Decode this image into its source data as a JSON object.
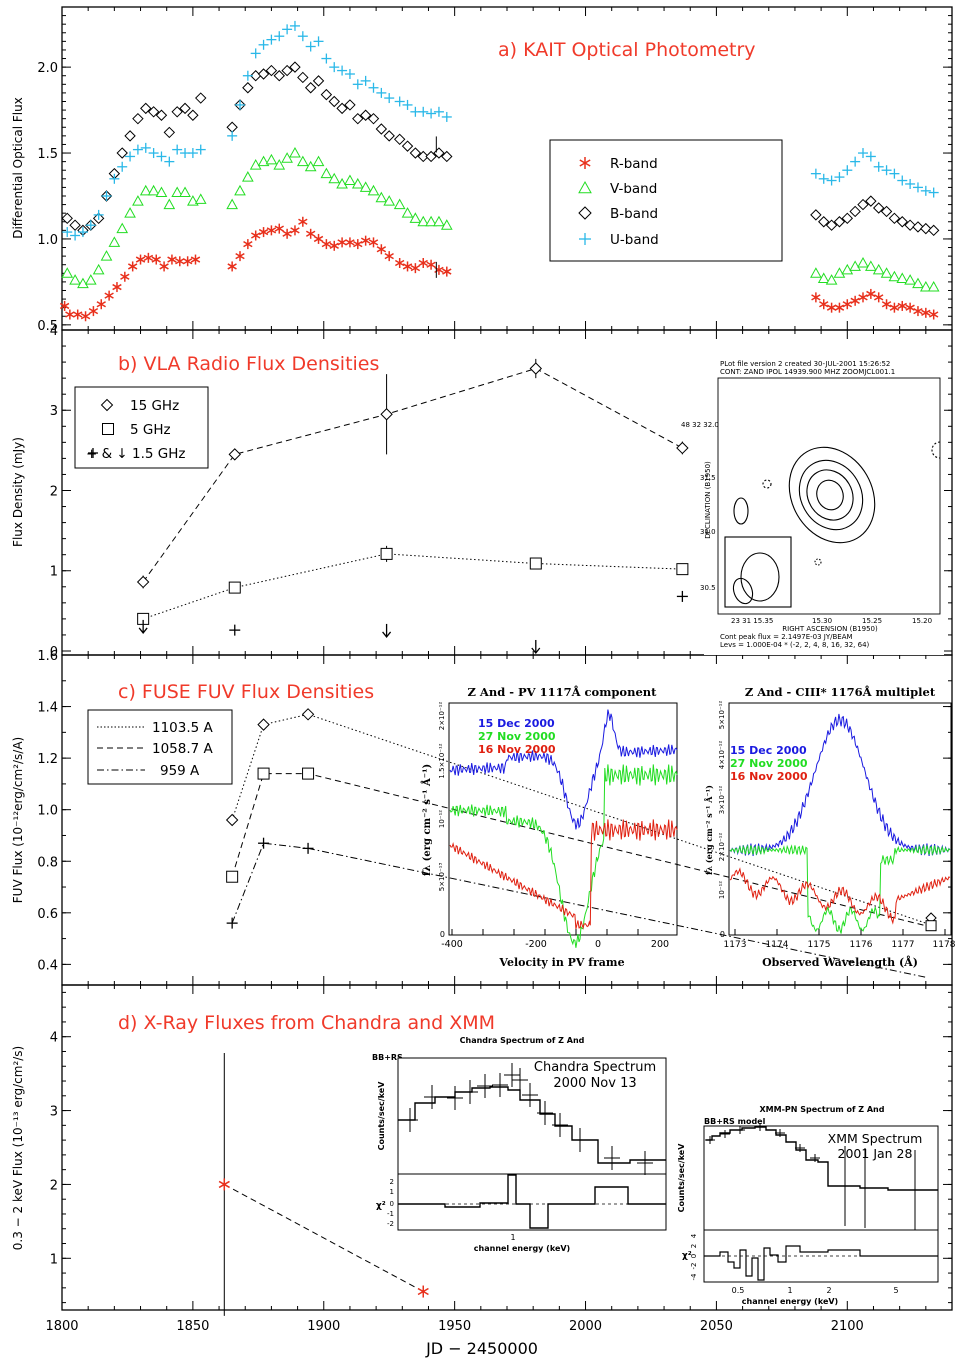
{
  "figure": {
    "xlabel": "JD − 2450000",
    "xticks": [
      1800,
      1850,
      1900,
      1950,
      2000,
      2050,
      2100
    ],
    "xlim": [
      1800,
      2140
    ]
  },
  "chart_data": [
    {
      "type": "scatter",
      "panel": "a",
      "title": "a) KAIT Optical Photometry",
      "ylabel": "Differential Optical Flux",
      "ylim": [
        0.47,
        2.35
      ],
      "yticks": [
        "0.5",
        "1.0",
        "1.5",
        "2.0"
      ],
      "legend_position": "right-center",
      "series": [
        {
          "name": "R-band",
          "marker": "asterisk",
          "color": "#e8301c",
          "x": [
            1801,
            1803,
            1806,
            1809,
            1812,
            1815,
            1818,
            1821,
            1824,
            1827,
            1830,
            1833,
            1836,
            1839,
            1842,
            1845,
            1848,
            1851,
            1865,
            1868,
            1871,
            1874,
            1877,
            1880,
            1883,
            1886,
            1889,
            1892,
            1895,
            1898,
            1901,
            1904,
            1907,
            1910,
            1913,
            1916,
            1919,
            1922,
            1925,
            1929,
            1932,
            1935,
            1938,
            1941,
            1944,
            1947,
            2088,
            2091,
            2094,
            2097,
            2100,
            2103,
            2106,
            2109,
            2112,
            2115,
            2118,
            2121,
            2124,
            2127,
            2130,
            2133
          ],
          "y": [
            0.61,
            0.56,
            0.56,
            0.55,
            0.58,
            0.62,
            0.67,
            0.72,
            0.78,
            0.84,
            0.88,
            0.89,
            0.88,
            0.84,
            0.88,
            0.87,
            0.87,
            0.88,
            0.84,
            0.9,
            0.97,
            1.02,
            1.04,
            1.05,
            1.06,
            1.03,
            1.05,
            1.1,
            1.03,
            1.0,
            0.97,
            0.96,
            0.98,
            0.98,
            0.97,
            0.99,
            0.98,
            0.94,
            0.9,
            0.86,
            0.84,
            0.83,
            0.86,
            0.85,
            0.82,
            0.81,
            0.66,
            0.62,
            0.6,
            0.6,
            0.62,
            0.64,
            0.66,
            0.68,
            0.66,
            0.62,
            0.6,
            0.61,
            0.6,
            0.58,
            0.57,
            0.56
          ]
        },
        {
          "name": "V-band",
          "marker": "triangle",
          "color": "#22dd22",
          "x": [
            1802,
            1805,
            1808,
            1811,
            1814,
            1817,
            1820,
            1823,
            1826,
            1829,
            1832,
            1835,
            1838,
            1841,
            1844,
            1847,
            1850,
            1853,
            1865,
            1868,
            1871,
            1874,
            1877,
            1880,
            1883,
            1886,
            1889,
            1892,
            1895,
            1898,
            1901,
            1904,
            1907,
            1910,
            1913,
            1916,
            1919,
            1922,
            1925,
            1929,
            1932,
            1935,
            1938,
            1941,
            1944,
            1947,
            2088,
            2091,
            2094,
            2097,
            2100,
            2103,
            2106,
            2109,
            2112,
            2115,
            2118,
            2121,
            2124,
            2127,
            2130,
            2133
          ],
          "y": [
            0.8,
            0.76,
            0.74,
            0.76,
            0.82,
            0.9,
            0.98,
            1.06,
            1.15,
            1.22,
            1.28,
            1.28,
            1.27,
            1.2,
            1.27,
            1.27,
            1.22,
            1.23,
            1.2,
            1.28,
            1.36,
            1.43,
            1.45,
            1.46,
            1.43,
            1.47,
            1.5,
            1.45,
            1.42,
            1.45,
            1.38,
            1.35,
            1.32,
            1.34,
            1.32,
            1.3,
            1.28,
            1.24,
            1.22,
            1.2,
            1.15,
            1.12,
            1.1,
            1.1,
            1.1,
            1.08,
            0.8,
            0.77,
            0.76,
            0.8,
            0.82,
            0.84,
            0.86,
            0.84,
            0.82,
            0.8,
            0.78,
            0.77,
            0.76,
            0.74,
            0.72,
            0.72
          ]
        },
        {
          "name": "B-band",
          "marker": "diamond",
          "color": "#000000",
          "x": [
            1802,
            1805,
            1808,
            1811,
            1814,
            1817,
            1820,
            1823,
            1826,
            1829,
            1832,
            1835,
            1838,
            1841,
            1844,
            1847,
            1850,
            1853,
            1865,
            1868,
            1871,
            1874,
            1877,
            1880,
            1883,
            1886,
            1889,
            1892,
            1895,
            1898,
            1901,
            1904,
            1907,
            1910,
            1913,
            1916,
            1919,
            1922,
            1925,
            1929,
            1932,
            1935,
            1938,
            1941,
            1944,
            1947,
            2088,
            2091,
            2094,
            2097,
            2100,
            2103,
            2106,
            2109,
            2112,
            2115,
            2118,
            2121,
            2124,
            2127,
            2130,
            2133
          ],
          "y": [
            1.12,
            1.08,
            1.05,
            1.08,
            1.12,
            1.25,
            1.38,
            1.5,
            1.6,
            1.7,
            1.76,
            1.74,
            1.72,
            1.62,
            1.74,
            1.76,
            1.72,
            1.82,
            1.65,
            1.78,
            1.88,
            1.95,
            1.96,
            1.98,
            1.95,
            1.98,
            2.0,
            1.94,
            1.88,
            1.92,
            1.84,
            1.8,
            1.76,
            1.78,
            1.7,
            1.72,
            1.7,
            1.64,
            1.6,
            1.58,
            1.54,
            1.5,
            1.48,
            1.48,
            1.5,
            1.48,
            1.14,
            1.1,
            1.08,
            1.1,
            1.12,
            1.16,
            1.2,
            1.22,
            1.18,
            1.16,
            1.12,
            1.1,
            1.08,
            1.07,
            1.06,
            1.05
          ]
        },
        {
          "name": "U-band",
          "marker": "plus",
          "color": "#2ab8e8",
          "x": [
            1802,
            1805,
            1808,
            1811,
            1814,
            1817,
            1820,
            1823,
            1826,
            1829,
            1832,
            1835,
            1838,
            1841,
            1844,
            1847,
            1850,
            1853,
            1865,
            1868,
            1871,
            1874,
            1877,
            1880,
            1883,
            1886,
            1889,
            1892,
            1895,
            1898,
            1901,
            1904,
            1907,
            1910,
            1913,
            1916,
            1919,
            1922,
            1925,
            1929,
            1932,
            1935,
            1938,
            1941,
            1944,
            1947,
            2088,
            2091,
            2094,
            2097,
            2100,
            2103,
            2106,
            2109,
            2112,
            2115,
            2118,
            2121,
            2124,
            2127,
            2130,
            2133
          ],
          "y": [
            1.04,
            1.02,
            1.04,
            1.08,
            1.14,
            1.25,
            1.35,
            1.42,
            1.48,
            1.52,
            1.53,
            1.5,
            1.48,
            1.45,
            1.52,
            1.5,
            1.5,
            1.52,
            1.6,
            1.78,
            1.95,
            2.08,
            2.13,
            2.16,
            2.18,
            2.22,
            2.24,
            2.18,
            2.12,
            2.15,
            2.05,
            2.0,
            1.98,
            1.96,
            1.9,
            1.92,
            1.88,
            1.85,
            1.82,
            1.8,
            1.78,
            1.74,
            1.74,
            1.73,
            1.74,
            1.71,
            1.38,
            1.35,
            1.34,
            1.36,
            1.4,
            1.45,
            1.5,
            1.48,
            1.42,
            1.4,
            1.38,
            1.34,
            1.32,
            1.3,
            1.28,
            1.27
          ]
        }
      ]
    },
    {
      "type": "line",
      "panel": "b",
      "title": "b) VLA Radio Flux Densities",
      "ylabel": "Flux Density (mJy)",
      "ylim": [
        -0.05,
        4.0
      ],
      "yticks": [
        "0",
        "1",
        "2",
        "3",
        "4"
      ],
      "series": [
        {
          "name": "15 GHz",
          "marker": "diamond",
          "line": "dashed",
          "x": [
            1831,
            1866,
            1924,
            1981,
            2037
          ],
          "y": [
            0.86,
            2.45,
            2.95,
            3.52,
            2.53
          ],
          "err": [
            0.08,
            0.06,
            0.5,
            0.12,
            0.08
          ]
        },
        {
          "name": "5 GHz",
          "marker": "square",
          "line": "dotted",
          "x": [
            1831,
            1866,
            1924,
            1981,
            2037
          ],
          "y": [
            0.4,
            0.79,
            1.21,
            1.09,
            1.02
          ],
          "err": [
            0.05,
            0.05,
            0.1,
            0.06,
            0.05
          ]
        },
        {
          "name": "+ & ↓ 1.5 GHz",
          "marker": "plus-or-arrow",
          "x": [
            1831,
            1866,
            1924,
            1981,
            2037
          ],
          "y": [
            0.3,
            0.26,
            0.25,
            0.05,
            0.68
          ],
          "upper_limit": [
            true,
            false,
            true,
            true,
            false
          ]
        }
      ],
      "inset": {
        "header1": "PLot file version 2  created 30-JUL-2001 15:26:52",
        "header2": "CONT: ZAND  IPOL  14939.900 MHZ  ZOOMJCL001.1",
        "ylabel": "DECLINATION (B1950)",
        "xlabel": "RIGHT ASCENSION (B1950)",
        "yticks": [
          "48 32 32.0",
          "31.5",
          "31.0",
          "30.5"
        ],
        "xticks": [
          "23 31 15.35",
          "15.30",
          "15.25",
          "15.20"
        ],
        "footer1": "Cont peak flux =  2.1497E-03 JY/BEAM",
        "footer2": "Levs = 1.000E-04 * (-2, 2, 4, 8, 16, 32, 64)"
      }
    },
    {
      "type": "line",
      "panel": "c",
      "title": "c) FUSE FUV Flux Densities",
      "ylabel": "FUV Flux (10⁻¹²erg/cm²/s/A)",
      "ylim": [
        0.32,
        1.6
      ],
      "yticks": [
        "0.4",
        "0.6",
        "0.8",
        "1.0",
        "1.2",
        "1.4",
        "1.6"
      ],
      "series": [
        {
          "name": "1103.5 A",
          "marker": "diamond",
          "line": "dotted",
          "x": [
            1865,
            1877,
            1894,
            2130
          ],
          "y": [
            0.96,
            1.33,
            1.37,
            0.56
          ]
        },
        {
          "name": "1058.7 A",
          "marker": "square",
          "line": "dashed",
          "x": [
            1865,
            1877,
            1894,
            2130
          ],
          "y": [
            0.74,
            1.14,
            1.14,
            0.55
          ]
        },
        {
          "name": "959 A",
          "marker": "plus",
          "line": "dashdot",
          "x": [
            1865,
            1877,
            1894,
            2130
          ],
          "y": [
            0.56,
            0.87,
            0.85,
            0.35
          ]
        }
      ],
      "insets": [
        {
          "title": "Z And - PV 1117Å component",
          "xlabel": "Velocity in PV frame",
          "ylabel": "fλ (erg cm⁻² s⁻¹ Å⁻¹)",
          "xticks": [
            "-400",
            "-200",
            "0",
            "200"
          ],
          "yticks": [
            "0",
            "5×10⁻¹³",
            "10⁻¹²",
            "1.5×10⁻¹²",
            "2×10⁻¹²"
          ],
          "dates": [
            {
              "label": "15 Dec 2000",
              "color": "#1a1ae0"
            },
            {
              "label": "27 Nov 2000",
              "color": "#22dd22"
            },
            {
              "label": "16 Nov 2000",
              "color": "#e02010"
            }
          ]
        },
        {
          "title": "Z And - CIII* 1176Å multiplet",
          "xlabel": "Observed Wavelength (Å)",
          "ylabel": "fλ (erg cm⁻² s⁻¹ Å⁻¹)",
          "xticks": [
            "1173",
            "1174",
            "1175",
            "1176",
            "1177",
            "1178"
          ],
          "yticks": [
            "0",
            "10⁻¹²",
            "2×10⁻¹²",
            "3×10⁻¹²",
            "4×10⁻¹²",
            "5×10⁻¹²"
          ],
          "dates": [
            {
              "label": "15 Dec 2000",
              "color": "#1a1ae0"
            },
            {
              "label": "27 Nov 2000",
              "color": "#22dd22"
            },
            {
              "label": "16 Nov 2000",
              "color": "#e02010"
            }
          ]
        }
      ]
    },
    {
      "type": "line",
      "panel": "d",
      "title": "d) X-Ray Fluxes from Chandra and XMM",
      "ylabel": "0.3 − 2 keV Flux (10⁻¹³ erg/cm²/s)",
      "ylim": [
        0.3,
        4.7
      ],
      "yticks": [
        "1",
        "2",
        "3",
        "4"
      ],
      "series": [
        {
          "name": "",
          "marker": "asterisk",
          "color": "#e8301c",
          "line": "dashed",
          "x": [
            1862,
            1938
          ],
          "y": [
            2.0,
            0.55
          ],
          "err": [
            1.78,
            0.0
          ]
        }
      ],
      "insets": [
        {
          "title": "Chandra Spectrum of Z And",
          "model": "BB+RS",
          "label1": "Chandra Spectrum",
          "label2": "2000 Nov 13",
          "ylabel": "Counts/sec/keV",
          "xlabel": "channel energy (keV)",
          "xtick": "1",
          "resid_label": "χ²",
          "resid_ticks": [
            "2",
            "1",
            "0",
            "-1",
            "-2"
          ]
        },
        {
          "title": "XMM-PN Spectrum of Z And",
          "model": "BB+RS model",
          "label1": "XMM Spectrum",
          "label2": "2001 Jan 28",
          "ylabel": "Counts/sec/keV",
          "xlabel": "channel energy (keV)",
          "xticks": [
            "0.5",
            "1",
            "2",
            "5"
          ],
          "resid_label": "χ²",
          "resid_ticks": [
            "4",
            "2",
            "0",
            "-2",
            "-4"
          ]
        }
      ]
    }
  ]
}
